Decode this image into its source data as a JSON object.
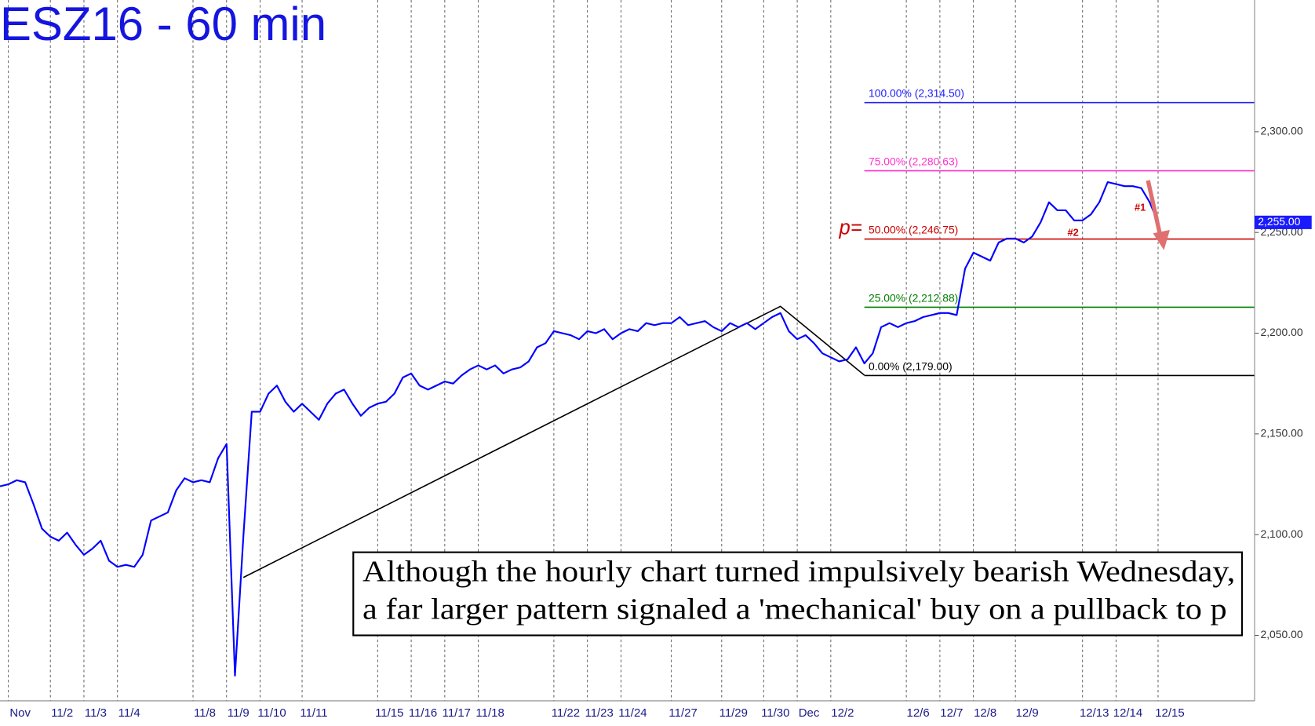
{
  "chart_data": {
    "type": "line",
    "title": "ESZ16 - 60 min",
    "categories": [
      null,
      null,
      "Nov",
      null,
      null,
      null,
      null,
      "11/2",
      null,
      null,
      null,
      "11/3",
      null,
      null,
      null,
      "11/4",
      null,
      null,
      null,
      null,
      null,
      null,
      null,
      null,
      "11/8",
      null,
      null,
      null,
      "11/9",
      null,
      null,
      null,
      "11/10",
      null,
      null,
      null,
      null,
      "11/11",
      null,
      null,
      null,
      null,
      null,
      null,
      null,
      null,
      "11/15",
      null,
      null,
      null,
      "11/16",
      null,
      null,
      null,
      "11/17",
      null,
      null,
      null,
      "11/18",
      null,
      null,
      null,
      null,
      null,
      null,
      null,
      null,
      "11/22",
      null,
      null,
      null,
      "11/23",
      null,
      null,
      null,
      "11/24",
      null,
      null,
      null,
      null,
      null,
      "11/27",
      null,
      null,
      null,
      null,
      null,
      "11/29",
      null,
      null,
      null,
      null,
      "11/30",
      null,
      null,
      null,
      "Dec",
      null,
      null,
      null,
      "12/2",
      null,
      null,
      null,
      null,
      null,
      null,
      null,
      null,
      "12/6",
      null,
      null,
      null,
      "12/7",
      null,
      null,
      null,
      "12/8",
      null,
      null,
      null,
      null,
      "12/9",
      null,
      null,
      null,
      null,
      null,
      null,
      null,
      "12/13",
      null,
      null,
      null,
      "12/14",
      null,
      null,
      null,
      null,
      "12/15"
    ],
    "series": [
      {
        "color": "#0000ff",
        "values": [
          2124,
          2125,
          2127,
          2126,
          2115,
          2103,
          2099,
          2097,
          2101,
          2095,
          2090,
          2093,
          2097,
          2087,
          2084,
          2085,
          2084,
          2090,
          2107,
          2109,
          2111,
          2122,
          2128,
          2126,
          2127,
          2126,
          2138,
          2145,
          2030,
          2099,
          2161,
          2161,
          2170,
          2174,
          2166,
          2161,
          2165,
          2161,
          2157,
          2165,
          2170,
          2172,
          2165,
          2159,
          2163,
          2165,
          2166,
          2170,
          2178,
          2180,
          2174,
          2172,
          2174,
          2176,
          2175,
          2179,
          2182,
          2184,
          2182,
          2184,
          2180,
          2182,
          2183,
          2186,
          2193,
          2195,
          2201,
          2200,
          2199,
          2197,
          2201,
          2200,
          2202,
          2197,
          2200,
          2202,
          2201,
          2205,
          2204,
          2205,
          2205,
          2208,
          2204,
          2205,
          2206,
          2203,
          2201,
          2205,
          2203,
          2205,
          2202,
          2205,
          2208,
          2210,
          2201,
          2197,
          2199,
          2195,
          2190,
          2188,
          2186,
          2187,
          2193,
          2185,
          2190,
          2203,
          2205,
          2203,
          2205,
          2206,
          2208,
          2209,
          2210,
          2210,
          2209,
          2232,
          2240,
          2238,
          2236,
          2245,
          2247,
          2247,
          2245,
          2248,
          2255,
          2265,
          2261,
          2261,
          2256,
          2256,
          2259,
          2265,
          2275,
          2274,
          2273,
          2273,
          2272,
          2265,
          2255,
          null
        ]
      }
    ],
    "ylim": [
      2017.5,
      2365.4
    ],
    "yticks": [
      {
        "value": 2050,
        "label": "2,050.00"
      },
      {
        "value": 2100,
        "label": "2,100.00"
      },
      {
        "value": 2150,
        "label": "2,150.00"
      },
      {
        "value": 2200,
        "label": "2,200.00"
      },
      {
        "value": 2250,
        "label": "2,250.00"
      },
      {
        "value": 2300,
        "label": "2,300.00"
      }
    ],
    "fib_levels": [
      {
        "label": "100.00% (2,314.50)",
        "value": 2314.5,
        "color": "#2020ff"
      },
      {
        "label": "75.00% (2,280.63)",
        "value": 2280.63,
        "color": "#ff33cc"
      },
      {
        "label": "50.00% (2,246.75)",
        "value": 2246.75,
        "color": "#cc0000"
      },
      {
        "label": "25.00% (2,212.88)",
        "value": 2212.88,
        "color": "#008000"
      },
      {
        "label": "0.00% (2,179.00)",
        "value": 2179,
        "color": "#000000"
      }
    ],
    "last_price": {
      "value": 2255,
      "label": "2,255.00"
    },
    "annotations": [
      "p=",
      "#1",
      "#2"
    ],
    "text_box": [
      "Although the hourly chart turned impulsively bearish Wednesday,",
      "a far larger pattern signaled a 'mechanical' buy on a pullback to p"
    ]
  }
}
